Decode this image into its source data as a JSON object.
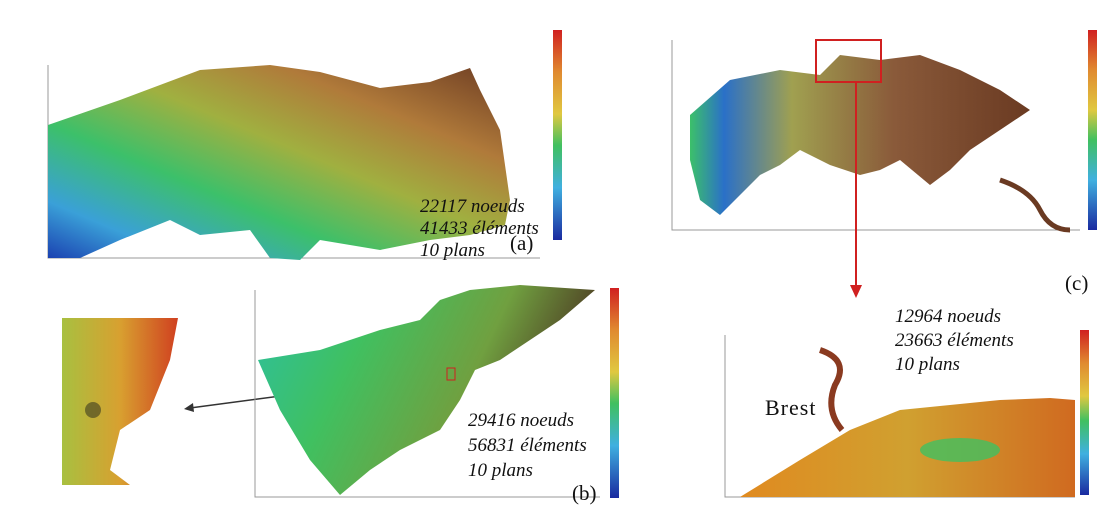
{
  "panels": [
    {
      "label": "(a)",
      "lines": [
        "22117 noeuds",
        "41433 éléments",
        "10 plans"
      ]
    },
    {
      "label": "(b)",
      "lines": [
        "29416 noeuds",
        "56831 éléments",
        "10 plans"
      ]
    },
    {
      "label": "(c)",
      "lines": [
        "12964 noeuds",
        "23663 éléments",
        "10 plans"
      ],
      "place": "Brest"
    }
  ]
}
